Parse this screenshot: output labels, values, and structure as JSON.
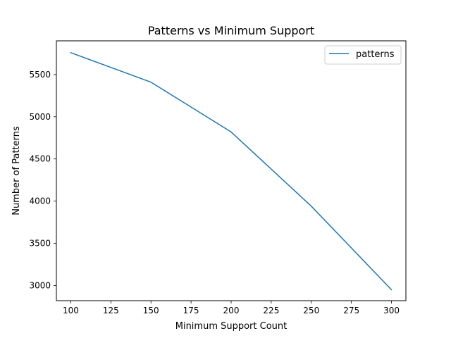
{
  "chart_data": {
    "type": "line",
    "title": "Patterns vs Minimum Support",
    "xlabel": "Minimum Support Count",
    "ylabel": "Number of Patterns",
    "x": [
      100,
      150,
      200,
      250,
      300
    ],
    "series": [
      {
        "name": "patterns",
        "values": [
          5760,
          5410,
          4820,
          3940,
          2950
        ],
        "color": "#1f77b4"
      }
    ],
    "xlim": [
      91,
      309
    ],
    "ylim": [
      2820,
      5900
    ],
    "xticks": [
      100,
      125,
      150,
      175,
      200,
      225,
      250,
      275,
      300
    ],
    "yticks": [
      3000,
      3500,
      4000,
      4500,
      5000,
      5500
    ],
    "grid": false,
    "legend_position": "top-right"
  }
}
